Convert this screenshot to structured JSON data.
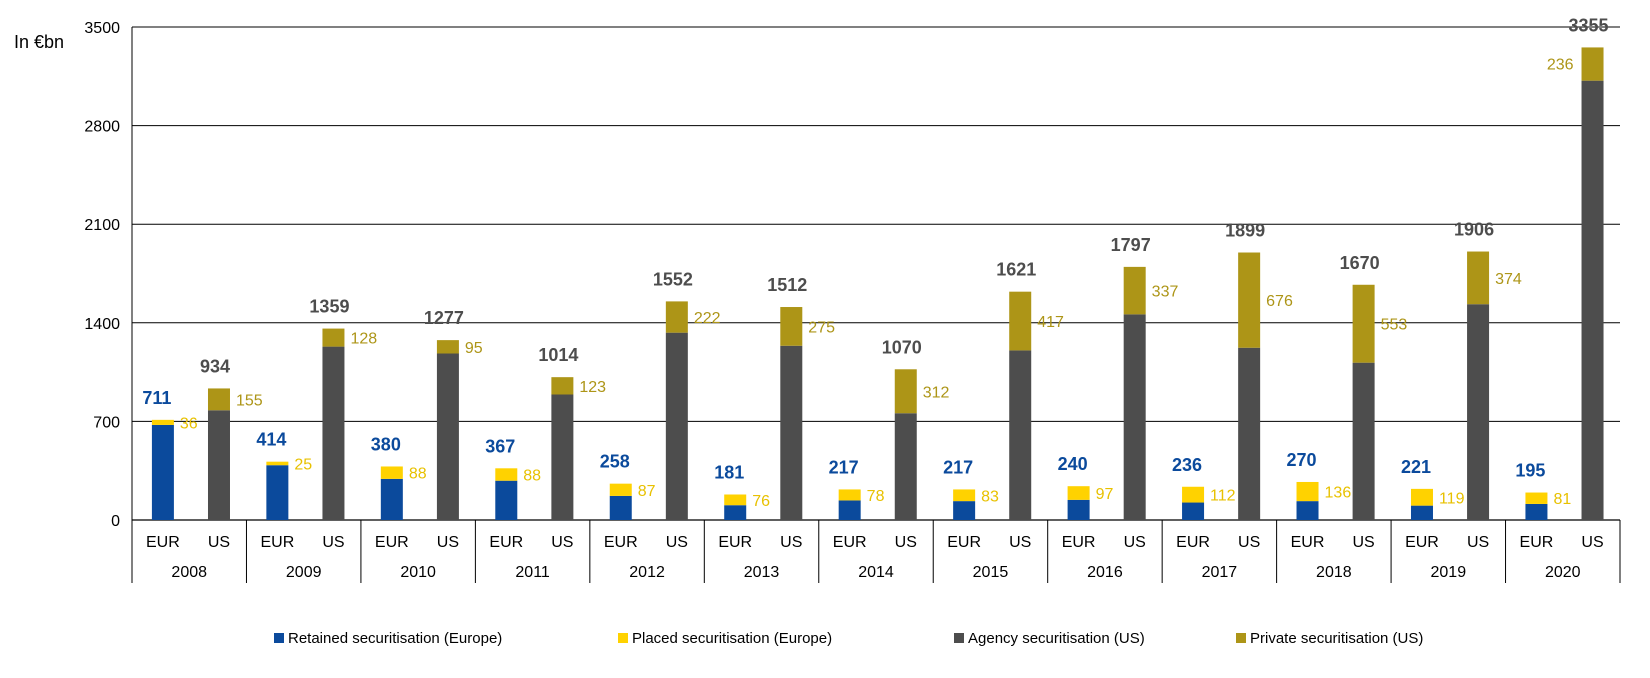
{
  "chart_data": {
    "type": "bar",
    "stacked": true,
    "ylabel": "In €bn",
    "ylim": [
      0,
      3500
    ],
    "yticks": [
      0,
      700,
      1400,
      2100,
      2800,
      3500
    ],
    "grid": true,
    "legend_position": "bottom",
    "group_labels": [
      "EUR",
      "US"
    ],
    "years": [
      "2008",
      "2009",
      "2010",
      "2011",
      "2012",
      "2013",
      "2014",
      "2015",
      "2016",
      "2017",
      "2018",
      "2019",
      "2020"
    ],
    "eur_totals": [
      711,
      414,
      380,
      367,
      258,
      181,
      217,
      217,
      240,
      236,
      270,
      221,
      195
    ],
    "us_totals": [
      934,
      1359,
      1277,
      1014,
      1552,
      1512,
      1070,
      1621,
      1797,
      1899,
      1670,
      1906,
      3355
    ],
    "series": [
      {
        "name": "Retained securitisation (Europe)",
        "stack": "EUR",
        "color": "#0b4a9c",
        "values": [
          675,
          389,
          292,
          279,
          171,
          105,
          139,
          134,
          143,
          124,
          134,
          102,
          114
        ],
        "labeled": false
      },
      {
        "name": "Placed securitisation (Europe)",
        "stack": "EUR",
        "color": "#ffd200",
        "values": [
          36,
          25,
          88,
          88,
          87,
          76,
          78,
          83,
          97,
          112,
          136,
          119,
          81
        ],
        "labeled": true
      },
      {
        "name": "Agency securitisation (US)",
        "stack": "US",
        "color": "#4d4d4d",
        "values": [
          779,
          1231,
          1182,
          891,
          1330,
          1237,
          758,
          1204,
          1460,
          1223,
          1117,
          1532,
          3119
        ],
        "labeled": false
      },
      {
        "name": "Private securitisation (US)",
        "stack": "US",
        "color": "#ad9517",
        "values": [
          155,
          128,
          95,
          123,
          222,
          275,
          312,
          417,
          337,
          676,
          553,
          374,
          236
        ],
        "labeled": true
      }
    ],
    "total_label_colors": {
      "EUR": "#0b4a9c",
      "US": "#4d4d4d"
    }
  }
}
